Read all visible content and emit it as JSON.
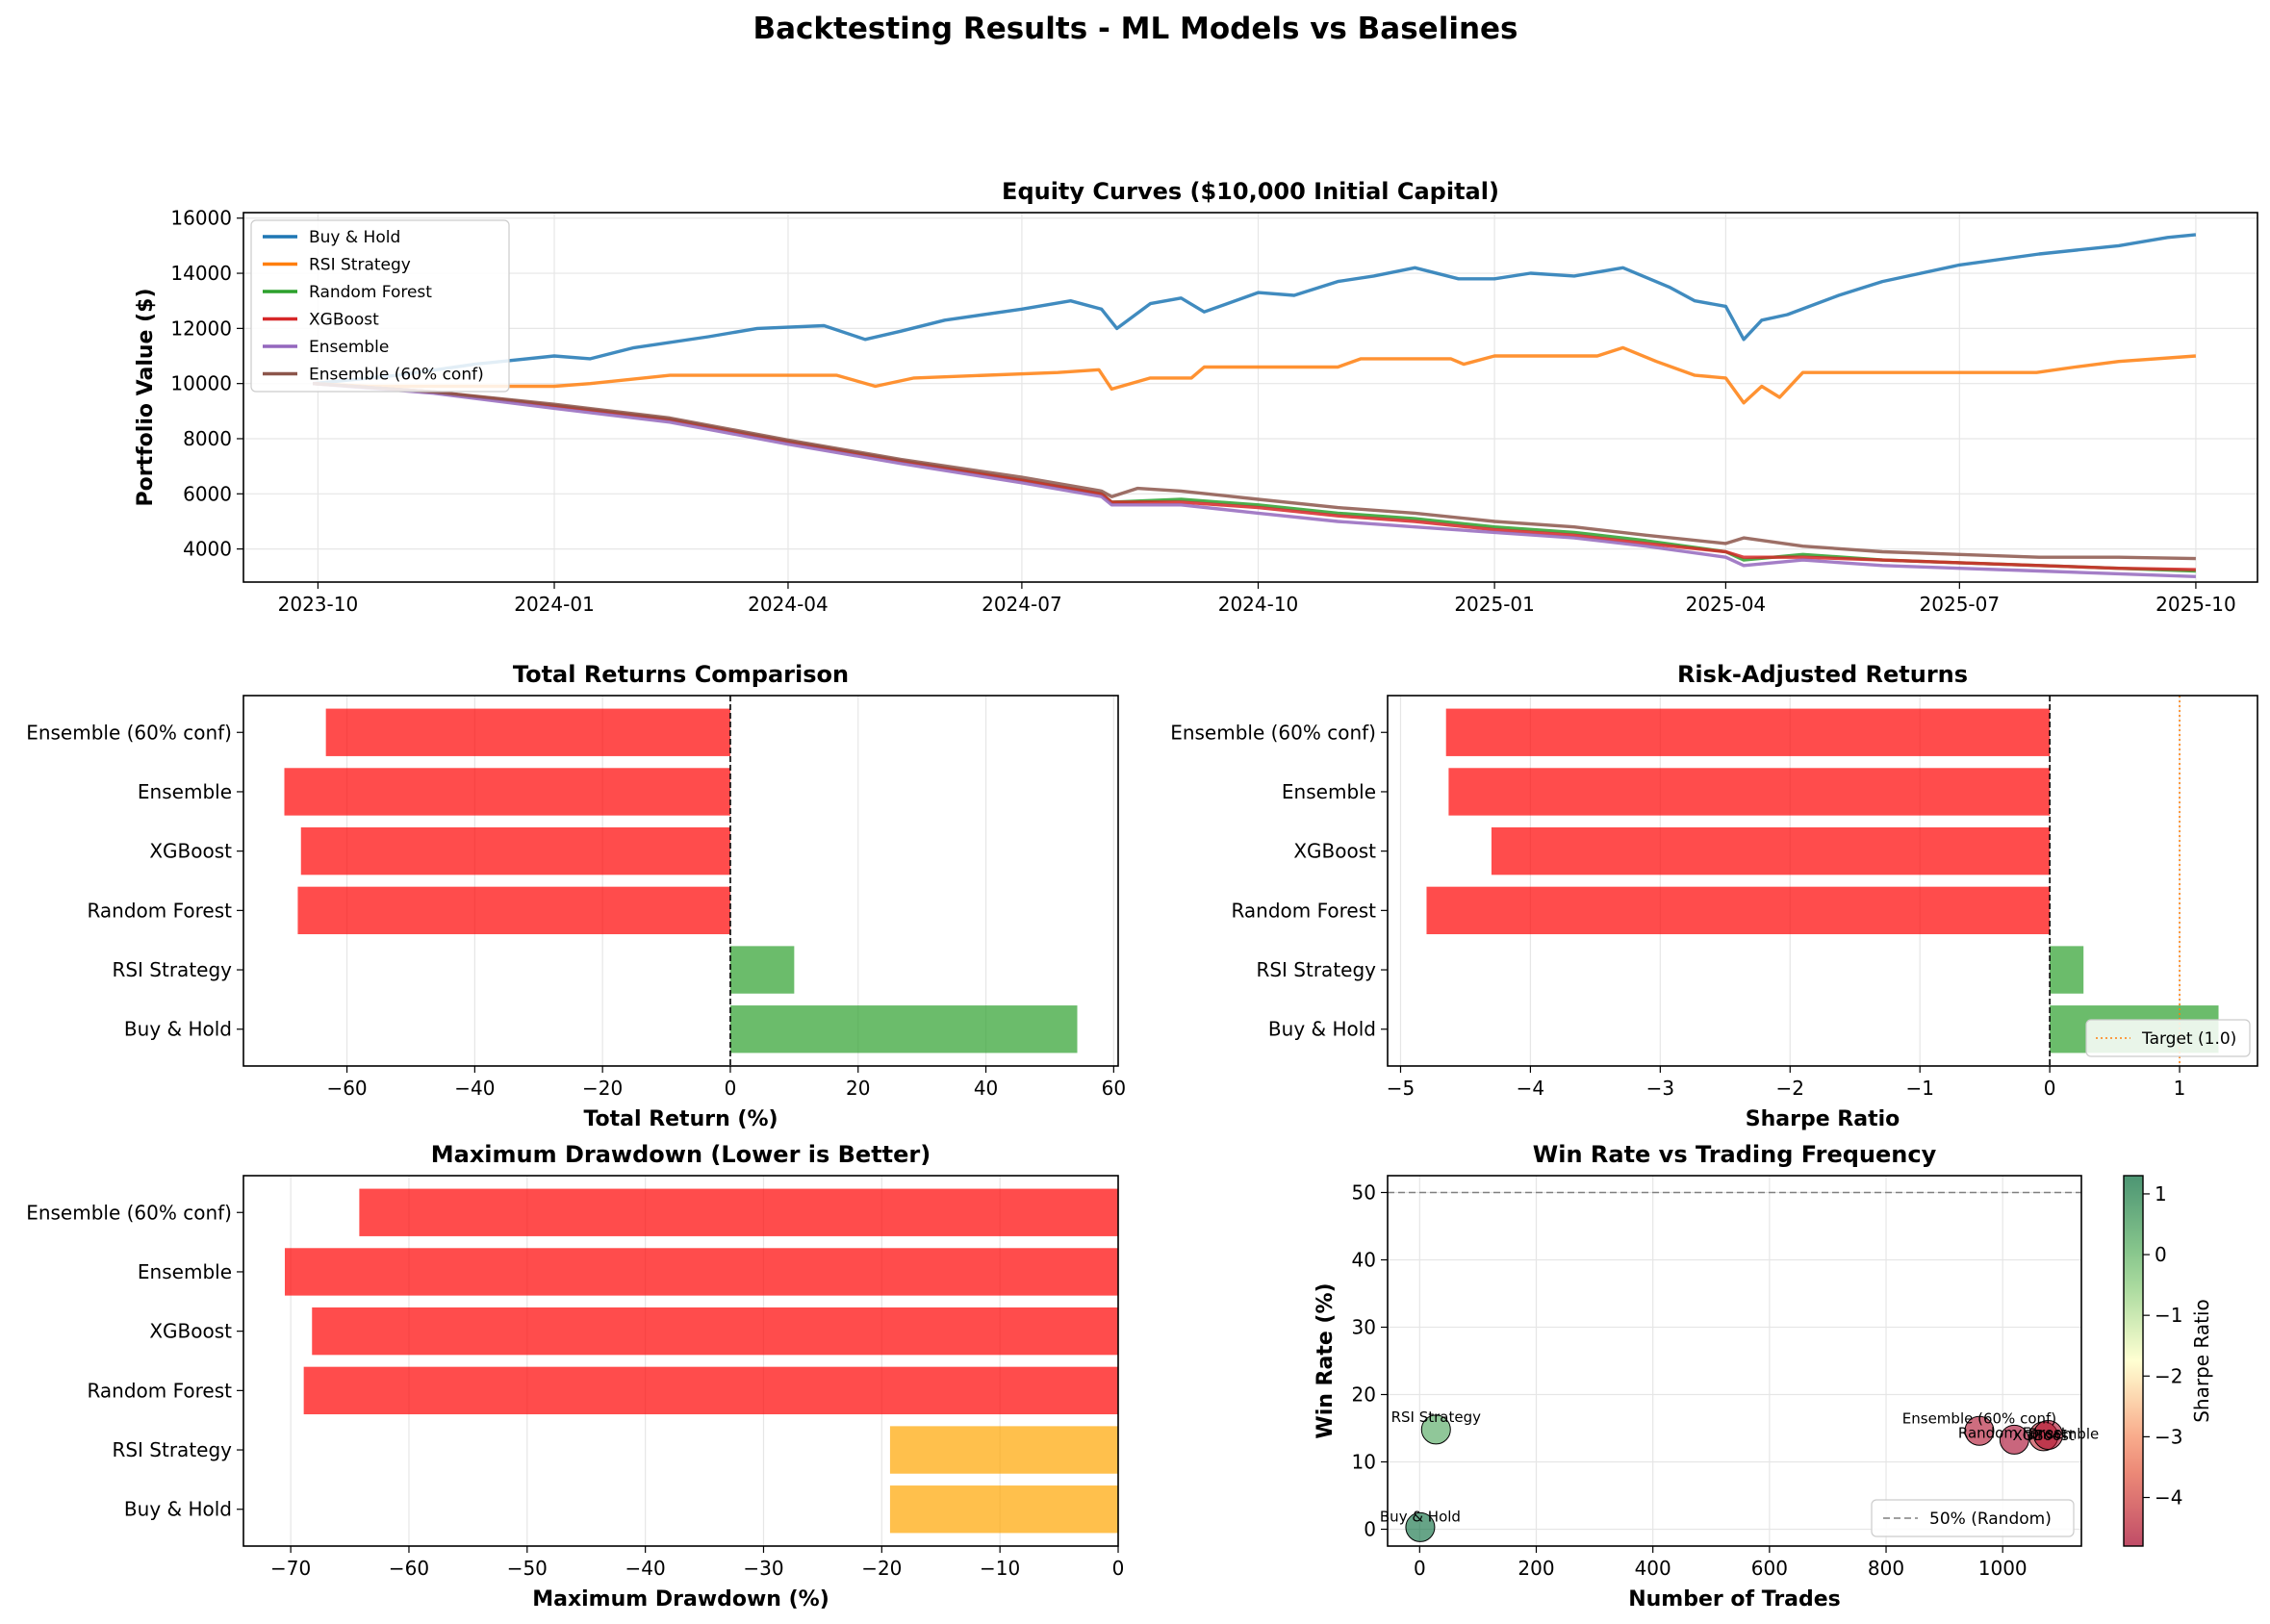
{
  "figure": {
    "suptitle": "Backtesting Results - ML Models vs Baselines"
  },
  "chart_data": [
    {
      "id": "equity",
      "type": "line",
      "title": "Equity Curves ($10,000 Initial Capital)",
      "xlabel": "",
      "ylabel": "Portfolio Value ($)",
      "xlim": [
        "2023-09-02",
        "2025-10-25"
      ],
      "ylim": [
        2800,
        16200
      ],
      "xticks": [
        "2023-10",
        "2024-01",
        "2024-04",
        "2024-07",
        "2024-10",
        "2025-01",
        "2025-04",
        "2025-07",
        "2025-10"
      ],
      "yticks": [
        4000,
        6000,
        8000,
        10000,
        12000,
        14000,
        16000
      ],
      "grid": true,
      "legend": "upper-left",
      "series": [
        {
          "name": "Buy & Hold",
          "color": "#1f77b4",
          "points": [
            [
              "2023-09-29",
              10000
            ],
            [
              "2023-11-01",
              10300
            ],
            [
              "2023-12-01",
              10700
            ],
            [
              "2024-01-01",
              11000
            ],
            [
              "2024-01-15",
              10900
            ],
            [
              "2024-02-01",
              11300
            ],
            [
              "2024-03-01",
              11700
            ],
            [
              "2024-03-20",
              12000
            ],
            [
              "2024-04-15",
              12100
            ],
            [
              "2024-05-01",
              11600
            ],
            [
              "2024-05-15",
              11900
            ],
            [
              "2024-06-01",
              12300
            ],
            [
              "2024-07-01",
              12700
            ],
            [
              "2024-07-20",
              13000
            ],
            [
              "2024-08-01",
              12700
            ],
            [
              "2024-08-07",
              12000
            ],
            [
              "2024-08-20",
              12900
            ],
            [
              "2024-09-01",
              13100
            ],
            [
              "2024-09-10",
              12600
            ],
            [
              "2024-10-01",
              13300
            ],
            [
              "2024-10-15",
              13200
            ],
            [
              "2024-11-01",
              13700
            ],
            [
              "2024-11-15",
              13900
            ],
            [
              "2024-12-01",
              14200
            ],
            [
              "2024-12-18",
              13800
            ],
            [
              "2025-01-01",
              13800
            ],
            [
              "2025-01-15",
              14000
            ],
            [
              "2025-02-01",
              13900
            ],
            [
              "2025-02-20",
              14200
            ],
            [
              "2025-03-10",
              13500
            ],
            [
              "2025-03-20",
              13000
            ],
            [
              "2025-04-01",
              12800
            ],
            [
              "2025-04-08",
              11600
            ],
            [
              "2025-04-15",
              12300
            ],
            [
              "2025-04-25",
              12500
            ],
            [
              "2025-05-15",
              13200
            ],
            [
              "2025-06-01",
              13700
            ],
            [
              "2025-07-01",
              14300
            ],
            [
              "2025-08-01",
              14700
            ],
            [
              "2025-09-01",
              15000
            ],
            [
              "2025-09-20",
              15300
            ],
            [
              "2025-10-01",
              15400
            ]
          ]
        },
        {
          "name": "RSI Strategy",
          "color": "#ff7f0e",
          "points": [
            [
              "2023-09-29",
              10000
            ],
            [
              "2023-10-20",
              9900
            ],
            [
              "2024-01-01",
              9900
            ],
            [
              "2024-01-15",
              10000
            ],
            [
              "2024-02-15",
              10300
            ],
            [
              "2024-04-20",
              10300
            ],
            [
              "2024-05-05",
              9900
            ],
            [
              "2024-05-20",
              10200
            ],
            [
              "2024-07-15",
              10400
            ],
            [
              "2024-07-31",
              10500
            ],
            [
              "2024-08-05",
              9800
            ],
            [
              "2024-08-20",
              10200
            ],
            [
              "2024-09-05",
              10200
            ],
            [
              "2024-09-10",
              10600
            ],
            [
              "2024-11-01",
              10600
            ],
            [
              "2024-11-10",
              10900
            ],
            [
              "2024-12-15",
              10900
            ],
            [
              "2024-12-20",
              10700
            ],
            [
              "2025-01-01",
              11000
            ],
            [
              "2025-02-10",
              11000
            ],
            [
              "2025-02-20",
              11300
            ],
            [
              "2025-03-05",
              10800
            ],
            [
              "2025-03-20",
              10300
            ],
            [
              "2025-04-01",
              10200
            ],
            [
              "2025-04-08",
              9300
            ],
            [
              "2025-04-15",
              9900
            ],
            [
              "2025-04-22",
              9500
            ],
            [
              "2025-05-01",
              10400
            ],
            [
              "2025-07-31",
              10400
            ],
            [
              "2025-08-15",
              10600
            ],
            [
              "2025-09-01",
              10800
            ],
            [
              "2025-10-01",
              11000
            ]
          ]
        },
        {
          "name": "Random Forest",
          "color": "#2ca02c",
          "points": [
            [
              "2023-09-29",
              10000
            ],
            [
              "2023-11-15",
              9700
            ],
            [
              "2024-01-01",
              9200
            ],
            [
              "2024-02-15",
              8700
            ],
            [
              "2024-04-01",
              7900
            ],
            [
              "2024-05-15",
              7200
            ],
            [
              "2024-07-01",
              6500
            ],
            [
              "2024-08-01",
              6000
            ],
            [
              "2024-08-05",
              5700
            ],
            [
              "2024-09-01",
              5800
            ],
            [
              "2024-10-01",
              5600
            ],
            [
              "2024-11-01",
              5300
            ],
            [
              "2024-12-01",
              5100
            ],
            [
              "2025-01-01",
              4800
            ],
            [
              "2025-02-01",
              4600
            ],
            [
              "2025-03-01",
              4300
            ],
            [
              "2025-04-01",
              3900
            ],
            [
              "2025-04-08",
              3600
            ],
            [
              "2025-05-01",
              3800
            ],
            [
              "2025-06-01",
              3600
            ],
            [
              "2025-07-01",
              3500
            ],
            [
              "2025-08-01",
              3400
            ],
            [
              "2025-09-01",
              3300
            ],
            [
              "2025-10-01",
              3200
            ]
          ]
        },
        {
          "name": "XGBoost",
          "color": "#d62728",
          "points": [
            [
              "2023-09-29",
              10000
            ],
            [
              "2023-11-15",
              9700
            ],
            [
              "2024-01-01",
              9200
            ],
            [
              "2024-02-15",
              8700
            ],
            [
              "2024-04-01",
              7900
            ],
            [
              "2024-05-15",
              7200
            ],
            [
              "2024-07-01",
              6500
            ],
            [
              "2024-08-01",
              6000
            ],
            [
              "2024-08-05",
              5700
            ],
            [
              "2024-09-01",
              5700
            ],
            [
              "2024-10-01",
              5500
            ],
            [
              "2024-11-01",
              5200
            ],
            [
              "2024-12-01",
              5000
            ],
            [
              "2025-01-01",
              4700
            ],
            [
              "2025-02-01",
              4500
            ],
            [
              "2025-03-01",
              4200
            ],
            [
              "2025-04-01",
              3900
            ],
            [
              "2025-04-08",
              3700
            ],
            [
              "2025-05-01",
              3700
            ],
            [
              "2025-06-01",
              3600
            ],
            [
              "2025-07-01",
              3500
            ],
            [
              "2025-08-01",
              3400
            ],
            [
              "2025-09-01",
              3300
            ],
            [
              "2025-10-01",
              3250
            ]
          ]
        },
        {
          "name": "Ensemble",
          "color": "#9467bd",
          "points": [
            [
              "2023-09-29",
              10000
            ],
            [
              "2023-11-15",
              9650
            ],
            [
              "2024-01-01",
              9100
            ],
            [
              "2024-02-15",
              8600
            ],
            [
              "2024-04-01",
              7800
            ],
            [
              "2024-05-15",
              7100
            ],
            [
              "2024-07-01",
              6400
            ],
            [
              "2024-08-01",
              5900
            ],
            [
              "2024-08-05",
              5600
            ],
            [
              "2024-09-01",
              5600
            ],
            [
              "2024-10-01",
              5300
            ],
            [
              "2024-11-01",
              5000
            ],
            [
              "2024-12-01",
              4800
            ],
            [
              "2025-01-01",
              4600
            ],
            [
              "2025-02-01",
              4400
            ],
            [
              "2025-03-01",
              4100
            ],
            [
              "2025-04-01",
              3700
            ],
            [
              "2025-04-08",
              3400
            ],
            [
              "2025-05-01",
              3600
            ],
            [
              "2025-06-01",
              3400
            ],
            [
              "2025-07-01",
              3300
            ],
            [
              "2025-08-01",
              3200
            ],
            [
              "2025-09-01",
              3100
            ],
            [
              "2025-10-01",
              3000
            ]
          ]
        },
        {
          "name": "Ensemble (60% conf)",
          "color": "#8c564b",
          "points": [
            [
              "2023-09-29",
              10000
            ],
            [
              "2023-11-15",
              9700
            ],
            [
              "2024-01-01",
              9250
            ],
            [
              "2024-02-15",
              8750
            ],
            [
              "2024-04-01",
              7950
            ],
            [
              "2024-05-15",
              7250
            ],
            [
              "2024-07-01",
              6600
            ],
            [
              "2024-08-01",
              6100
            ],
            [
              "2024-08-05",
              5900
            ],
            [
              "2024-08-15",
              6200
            ],
            [
              "2024-09-01",
              6100
            ],
            [
              "2024-10-01",
              5800
            ],
            [
              "2024-11-01",
              5500
            ],
            [
              "2024-12-01",
              5300
            ],
            [
              "2025-01-01",
              5000
            ],
            [
              "2025-02-01",
              4800
            ],
            [
              "2025-03-01",
              4500
            ],
            [
              "2025-04-01",
              4200
            ],
            [
              "2025-04-08",
              4400
            ],
            [
              "2025-05-01",
              4100
            ],
            [
              "2025-06-01",
              3900
            ],
            [
              "2025-07-01",
              3800
            ],
            [
              "2025-08-01",
              3700
            ],
            [
              "2025-09-01",
              3700
            ],
            [
              "2025-10-01",
              3650
            ]
          ]
        }
      ]
    },
    {
      "id": "returns",
      "type": "bar",
      "orientation": "horizontal",
      "title": "Total Returns Comparison",
      "xlabel": "Total Return (%)",
      "ylabel": "",
      "categories": [
        "Buy & Hold",
        "RSI Strategy",
        "Random Forest",
        "XGBoost",
        "Ensemble",
        "Ensemble (60% conf)"
      ],
      "values": [
        54.3,
        10.0,
        -67.7,
        -67.2,
        -69.8,
        -63.3
      ],
      "colors": [
        "#2ca02c",
        "#2ca02c",
        "#ff0000",
        "#ff0000",
        "#ff0000",
        "#ff0000"
      ],
      "xlim": [
        -76.2,
        60.7
      ],
      "xticks": [
        -60,
        -40,
        -20,
        0,
        20,
        40,
        60
      ],
      "grid": true,
      "zero_line": true
    },
    {
      "id": "sharpe",
      "type": "bar",
      "orientation": "horizontal",
      "title": "Risk-Adjusted Returns",
      "xlabel": "Sharpe Ratio",
      "ylabel": "",
      "categories": [
        "Buy & Hold",
        "RSI Strategy",
        "Random Forest",
        "XGBoost",
        "Ensemble",
        "Ensemble (60% conf)"
      ],
      "values": [
        1.3,
        0.26,
        -4.8,
        -4.3,
        -4.63,
        -4.65
      ],
      "colors": [
        "#2ca02c",
        "#2ca02c",
        "#ff0000",
        "#ff0000",
        "#ff0000",
        "#ff0000"
      ],
      "xlim": [
        -5.1,
        1.6
      ],
      "xticks": [
        -5,
        -4,
        -3,
        -2,
        -1,
        0,
        1
      ],
      "grid": true,
      "zero_line": true,
      "reference_line": {
        "value": 1.0,
        "label": "Target (1.0)",
        "color": "#ff7f0e"
      },
      "legend": "lower-right"
    },
    {
      "id": "drawdown",
      "type": "bar",
      "orientation": "horizontal",
      "title": "Maximum Drawdown (Lower is Better)",
      "xlabel": "Maximum Drawdown (%)",
      "ylabel": "",
      "categories": [
        "Buy & Hold",
        "RSI Strategy",
        "Random Forest",
        "XGBoost",
        "Ensemble",
        "Ensemble (60% conf)"
      ],
      "values": [
        -19.3,
        -19.3,
        -68.9,
        -68.2,
        -70.5,
        -64.2
      ],
      "colors": [
        "#ffa500",
        "#ffa500",
        "#ff0000",
        "#ff0000",
        "#ff0000",
        "#ff0000"
      ],
      "xlim": [
        -74.0,
        0
      ],
      "xticks": [
        -70,
        -60,
        -50,
        -40,
        -30,
        -20,
        -10,
        0
      ],
      "grid": true
    },
    {
      "id": "winrate",
      "type": "scatter",
      "title": "Win Rate vs Trading Frequency",
      "xlabel": "Number of Trades",
      "ylabel": "Win Rate (%)",
      "xlim": [
        -55,
        1135
      ],
      "ylim": [
        -2.5,
        52.5
      ],
      "xticks": [
        0,
        200,
        400,
        600,
        800,
        1000
      ],
      "yticks": [
        0,
        10,
        20,
        30,
        40,
        50
      ],
      "grid": true,
      "reference_line": {
        "value": 50,
        "label": "50% (Random)",
        "color": "#808080"
      },
      "legend": "lower-right",
      "colorbar": {
        "label": "Sharpe Ratio",
        "range": [
          -4.8,
          1.3
        ],
        "ticks": [
          -4,
          -3,
          -2,
          -1,
          0,
          1
        ]
      },
      "points": [
        {
          "name": "Buy & Hold",
          "x": 1,
          "y": 0.3,
          "sharpe": 1.3
        },
        {
          "name": "RSI Strategy",
          "x": 28,
          "y": 14.8,
          "sharpe": 0.26
        },
        {
          "name": "Random Forest",
          "x": 1020,
          "y": 13.3,
          "sharpe": -4.8
        },
        {
          "name": "XGBoost",
          "x": 1070,
          "y": 13.8,
          "sharpe": -4.3
        },
        {
          "name": "Ensemble",
          "x": 1078,
          "y": 14.0,
          "sharpe": -4.63
        },
        {
          "name": "Ensemble (60% conf)",
          "x": 960,
          "y": 14.6,
          "sharpe": -4.65
        }
      ]
    }
  ]
}
